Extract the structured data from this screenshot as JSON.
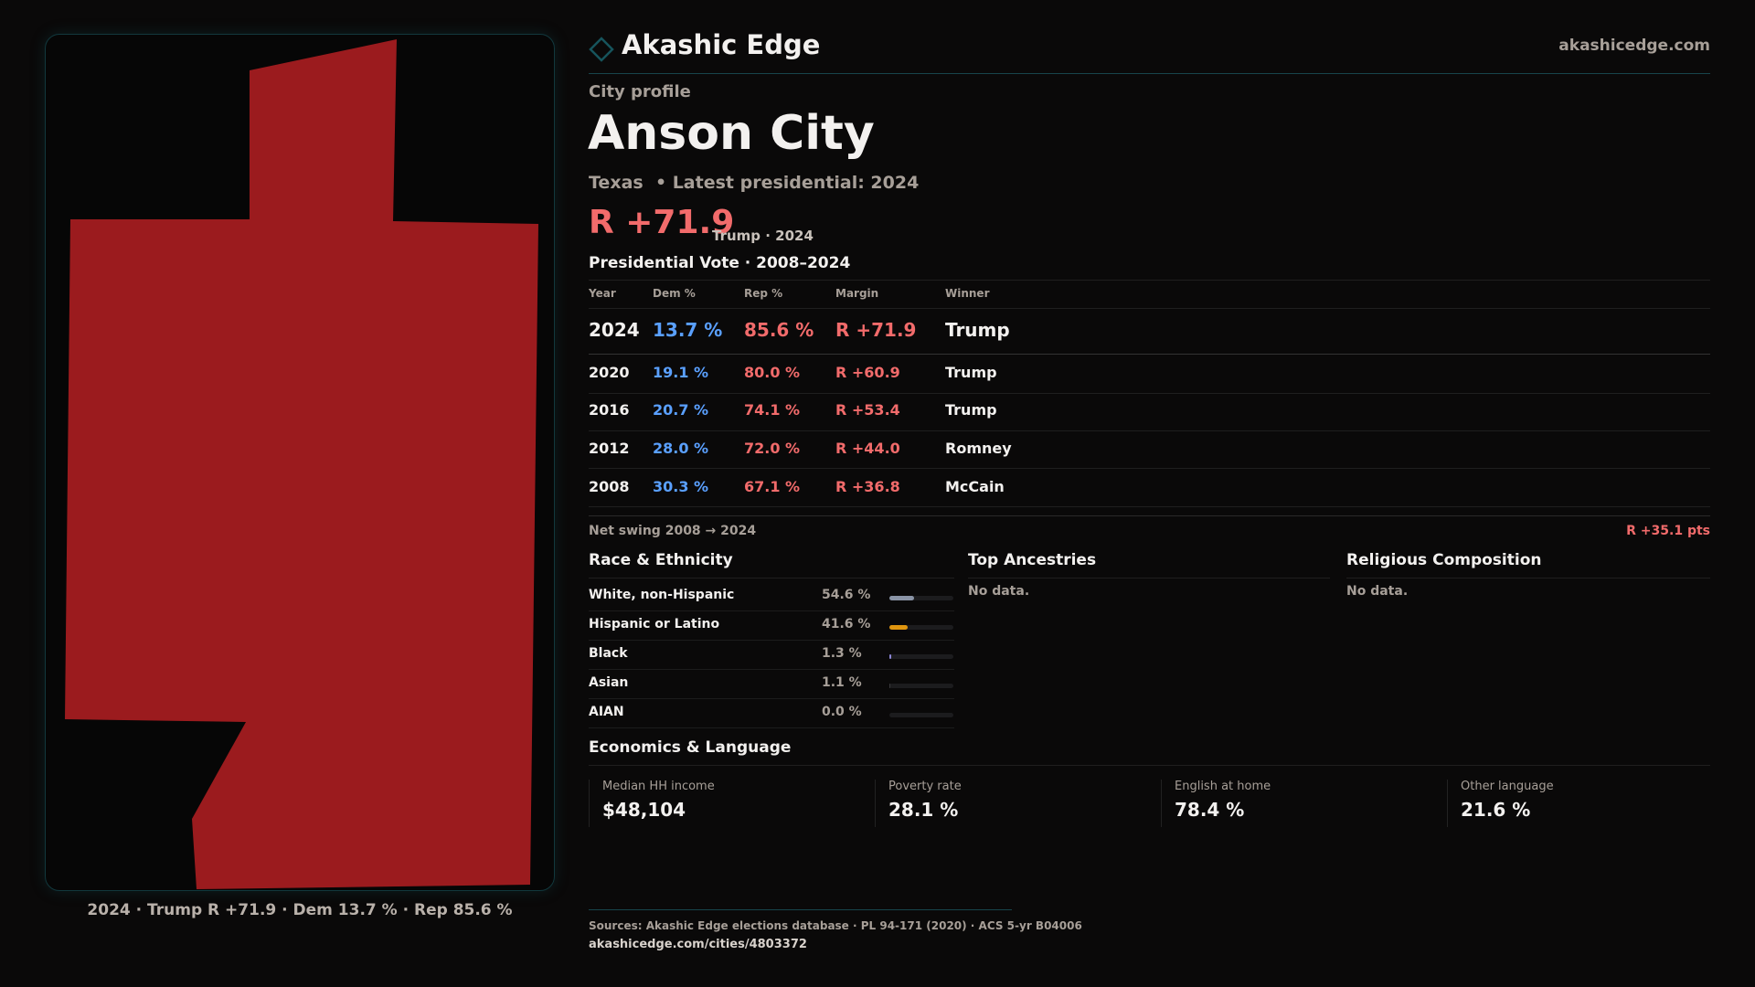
{
  "brand": {
    "name": "Akashic Edge",
    "site": "akashicedge.com",
    "accent": "#17545c"
  },
  "map": {
    "fill": "#9b1b1e",
    "caption": "2024 · Trump R +71.9 · Dem 13.7 % · Rep 85.6 %"
  },
  "profile": {
    "kicker": "City profile",
    "title": "Anson City",
    "subtitle": "Texas  • Latest presidential: 2024",
    "margin": "R +71.9",
    "margin_note": "Trump · 2024"
  },
  "vote": {
    "title": "Presidential Vote · 2008–2024",
    "headers": [
      "Year",
      "Dem %",
      "Rep %",
      "Margin",
      "Winner"
    ],
    "rows": [
      {
        "year": "2024",
        "dem": "13.7 %",
        "rep": "85.6 %",
        "margin": "R +71.9",
        "winner": "Trump"
      },
      {
        "year": "2020",
        "dem": "19.1 %",
        "rep": "80.0 %",
        "margin": "R +60.9",
        "winner": "Trump"
      },
      {
        "year": "2016",
        "dem": "20.7 %",
        "rep": "74.1 %",
        "margin": "R +53.4",
        "winner": "Trump"
      },
      {
        "year": "2012",
        "dem": "28.0 %",
        "rep": "72.0 %",
        "margin": "R +44.0",
        "winner": "Romney"
      },
      {
        "year": "2008",
        "dem": "30.3 %",
        "rep": "67.1 %",
        "margin": "R +36.8",
        "winner": "McCain"
      }
    ],
    "swing_label": "Net swing 2008 → 2024",
    "swing_value": "R +35.1 pts"
  },
  "race": {
    "title": "Race & Ethnicity",
    "rows": [
      {
        "label": "White, non-Hispanic",
        "value": "54.6 %",
        "pct": 54.6,
        "color": "#8a94a6"
      },
      {
        "label": "Hispanic or Latino",
        "value": "41.6 %",
        "pct": 41.6,
        "color": "#e0960f"
      },
      {
        "label": "Black",
        "value": "1.3 %",
        "pct": 1.3,
        "color": "#8c86d6"
      },
      {
        "label": "Asian",
        "value": "1.1 %",
        "pct": 1.1,
        "color": "#3a3a3c"
      },
      {
        "label": "AIAN",
        "value": "0.0 %",
        "pct": 0.0,
        "color": "#3a3a3c"
      }
    ]
  },
  "ancestries": {
    "title": "Top Ancestries",
    "empty": "No data."
  },
  "religion": {
    "title": "Religious Composition",
    "empty": "No data."
  },
  "econ": {
    "title": "Economics & Language",
    "stats": [
      {
        "label": "Median HH income",
        "value": "$48,104"
      },
      {
        "label": "Poverty rate",
        "value": "28.1 %"
      },
      {
        "label": "English at home",
        "value": "78.4 %"
      },
      {
        "label": "Other language",
        "value": "21.6 %"
      }
    ]
  },
  "footer": {
    "sources": "Sources: Akashic Edge elections database · PL 94-171 (2020) · ACS 5-yr B04006",
    "url": "akashicedge.com/cities/4803372"
  }
}
